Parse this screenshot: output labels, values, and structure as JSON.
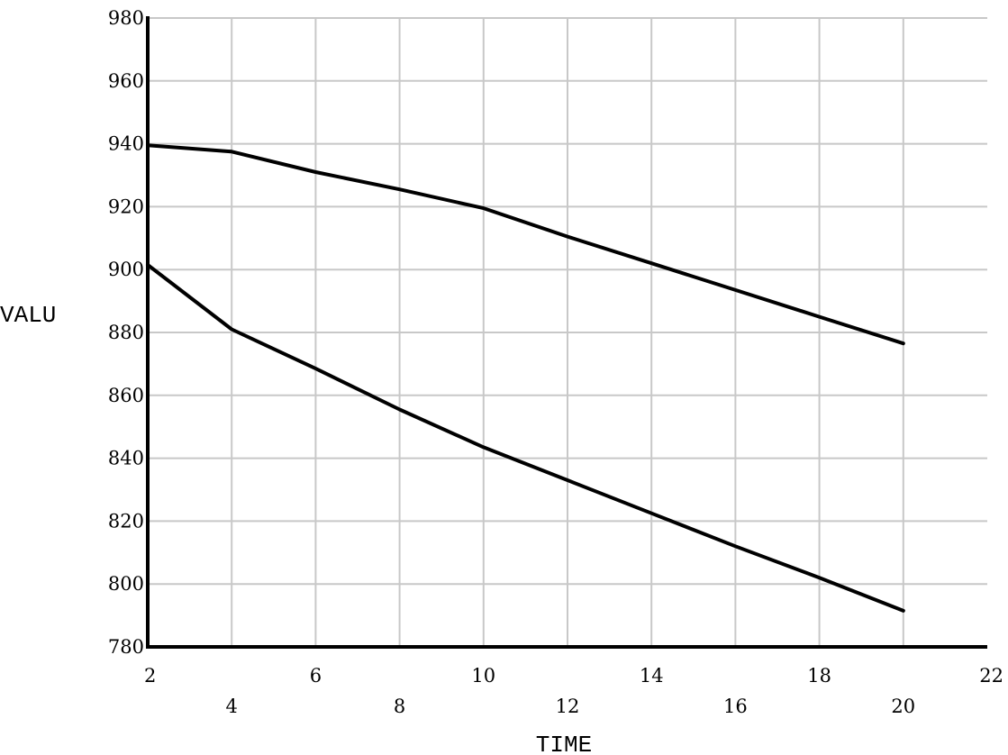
{
  "chart_data": {
    "type": "line",
    "title": "",
    "xlabel": "TIME",
    "ylabel": "VALU",
    "xlim": [
      2,
      22
    ],
    "ylim": [
      780,
      980
    ],
    "x_ticks": [
      2,
      4,
      6,
      8,
      10,
      12,
      14,
      16,
      18,
      20,
      22
    ],
    "y_ticks": [
      780,
      800,
      820,
      840,
      860,
      880,
      900,
      920,
      940,
      960,
      980
    ],
    "grid": true,
    "legend": "none",
    "line_color": "#000000",
    "grid_color": "#c8c8c8",
    "series": [
      {
        "x": [
          2,
          4,
          6,
          8,
          10,
          12,
          14,
          16,
          18,
          20
        ],
        "values": [
          939.5,
          937.5,
          931,
          925.5,
          919.5,
          910.5,
          902,
          893.5,
          885,
          876.5
        ]
      },
      {
        "x": [
          2,
          4,
          6,
          8,
          10,
          12,
          14,
          16,
          18,
          20
        ],
        "values": [
          901.5,
          881,
          868.5,
          855.5,
          843.5,
          833,
          822.5,
          812,
          802,
          791.5
        ]
      }
    ]
  }
}
